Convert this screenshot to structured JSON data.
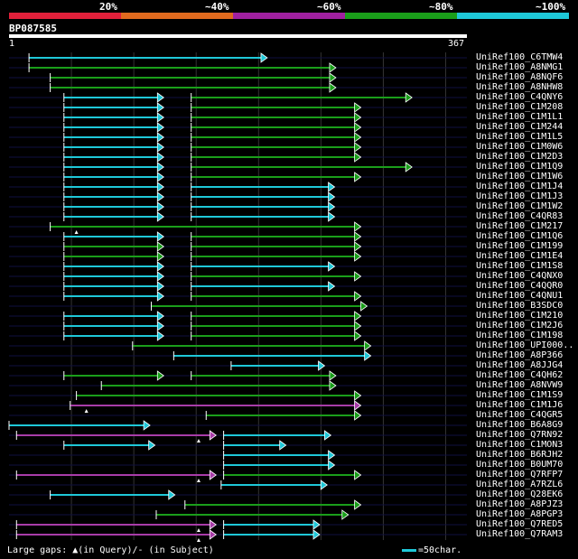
{
  "legend": {
    "segments": [
      {
        "color": "#e0203a",
        "fraction": 0.2
      },
      {
        "color": "#e06a1e",
        "fraction": 0.2
      },
      {
        "color": "#a020a0",
        "fraction": 0.2
      },
      {
        "color": "#1a9e1a",
        "fraction": 0.2
      },
      {
        "color": "#1ec8d8",
        "fraction": 0.2
      }
    ],
    "labels": [
      "20%",
      "~40%",
      "~60%",
      "~80%",
      "~100%"
    ]
  },
  "query": {
    "name": "BP087585",
    "start": "1",
    "end": "367",
    "length": 367
  },
  "footer": {
    "gaps_text": "Large gaps: ▲(in Query)/- (in Subject)",
    "scale_text": "=50char."
  },
  "colors": {
    "cyan": "#1ec8d8",
    "green": "#1a9e1a",
    "magenta": "#a83ca8"
  },
  "hits": [
    {
      "name": "UniRef100_C6TMW4",
      "segs": [
        [
          16,
          207,
          "cyan"
        ]
      ]
    },
    {
      "name": "UniRef100_A8NMG1",
      "segs": [
        [
          16,
          262,
          "green"
        ]
      ]
    },
    {
      "name": "UniRef100_A8NQF6",
      "segs": [
        [
          33,
          262,
          "green"
        ]
      ]
    },
    {
      "name": "UniRef100_A8NHW8",
      "segs": [
        [
          33,
          262,
          "green"
        ]
      ]
    },
    {
      "name": "UniRef100_C4QNY6",
      "segs": [
        [
          44,
          124,
          "cyan"
        ],
        [
          146,
          323,
          "green"
        ]
      ]
    },
    {
      "name": "UniRef100_C1M208",
      "segs": [
        [
          44,
          124,
          "cyan"
        ],
        [
          146,
          282,
          "green"
        ]
      ]
    },
    {
      "name": "UniRef100_C1M1L1",
      "segs": [
        [
          44,
          124,
          "cyan"
        ],
        [
          146,
          282,
          "green"
        ]
      ]
    },
    {
      "name": "UniRef100_C1M244",
      "segs": [
        [
          44,
          124,
          "cyan"
        ],
        [
          146,
          282,
          "green"
        ]
      ]
    },
    {
      "name": "UniRef100_C1M1L5",
      "segs": [
        [
          44,
          124,
          "cyan"
        ],
        [
          146,
          282,
          "green"
        ]
      ]
    },
    {
      "name": "UniRef100_C1M0W6",
      "segs": [
        [
          44,
          124,
          "cyan"
        ],
        [
          146,
          282,
          "green"
        ]
      ]
    },
    {
      "name": "UniRef100_C1M2D3",
      "segs": [
        [
          44,
          124,
          "cyan"
        ],
        [
          146,
          282,
          "green"
        ]
      ]
    },
    {
      "name": "UniRef100_C1M1Q9",
      "segs": [
        [
          44,
          124,
          "cyan"
        ],
        [
          146,
          323,
          "green"
        ]
      ]
    },
    {
      "name": "UniRef100_C1M1W6",
      "segs": [
        [
          44,
          124,
          "cyan"
        ],
        [
          146,
          282,
          "green"
        ]
      ]
    },
    {
      "name": "UniRef100_C1M1J4",
      "segs": [
        [
          44,
          124,
          "cyan"
        ],
        [
          146,
          261,
          "cyan"
        ]
      ]
    },
    {
      "name": "UniRef100_C1M1J3",
      "segs": [
        [
          44,
          124,
          "cyan"
        ],
        [
          146,
          261,
          "cyan"
        ]
      ]
    },
    {
      "name": "UniRef100_C1M1W2",
      "segs": [
        [
          44,
          124,
          "cyan"
        ],
        [
          146,
          261,
          "cyan"
        ]
      ]
    },
    {
      "name": "UniRef100_C4QR83",
      "segs": [
        [
          44,
          124,
          "cyan"
        ],
        [
          146,
          261,
          "cyan"
        ]
      ]
    },
    {
      "name": "UniRef100_C1M217",
      "segs": [
        [
          33,
          282,
          "green"
        ]
      ],
      "marks": [
        54
      ]
    },
    {
      "name": "UniRef100_C1M1Q6",
      "segs": [
        [
          44,
          124,
          "cyan"
        ],
        [
          146,
          282,
          "green"
        ]
      ]
    },
    {
      "name": "UniRef100_C1M199",
      "segs": [
        [
          44,
          124,
          "green"
        ],
        [
          146,
          282,
          "green"
        ]
      ]
    },
    {
      "name": "UniRef100_C1M1E4",
      "segs": [
        [
          44,
          124,
          "green"
        ],
        [
          146,
          282,
          "green"
        ]
      ]
    },
    {
      "name": "UniRef100_C1M1S8",
      "segs": [
        [
          44,
          124,
          "cyan"
        ],
        [
          146,
          261,
          "cyan"
        ]
      ]
    },
    {
      "name": "UniRef100_C4QNX0",
      "segs": [
        [
          44,
          124,
          "cyan"
        ],
        [
          146,
          282,
          "green"
        ]
      ]
    },
    {
      "name": "UniRef100_C4QQR0",
      "segs": [
        [
          44,
          124,
          "cyan"
        ],
        [
          146,
          261,
          "cyan"
        ]
      ]
    },
    {
      "name": "UniRef100_C4QNU1",
      "segs": [
        [
          44,
          124,
          "cyan"
        ],
        [
          146,
          282,
          "green"
        ]
      ]
    },
    {
      "name": "UniRef100_B3SDC0",
      "segs": [
        [
          114,
          287,
          "green"
        ]
      ]
    },
    {
      "name": "UniRef100_C1M210",
      "segs": [
        [
          44,
          124,
          "cyan"
        ],
        [
          146,
          282,
          "green"
        ]
      ]
    },
    {
      "name": "UniRef100_C1M2J6",
      "segs": [
        [
          44,
          124,
          "cyan"
        ],
        [
          146,
          282,
          "green"
        ]
      ]
    },
    {
      "name": "UniRef100_C1M198",
      "segs": [
        [
          44,
          124,
          "cyan"
        ],
        [
          146,
          282,
          "green"
        ]
      ]
    },
    {
      "name": "UniRef100_UPI000..",
      "segs": [
        [
          99,
          290,
          "green"
        ]
      ]
    },
    {
      "name": "UniRef100_A8P366",
      "segs": [
        [
          132,
          290,
          "cyan"
        ]
      ]
    },
    {
      "name": "UniRef100_A8JJG4",
      "segs": [
        [
          178,
          253,
          "cyan"
        ]
      ]
    },
    {
      "name": "UniRef100_C4QH62",
      "segs": [
        [
          44,
          124,
          "green"
        ],
        [
          146,
          262,
          "green"
        ]
      ]
    },
    {
      "name": "UniRef100_A8NVW9",
      "segs": [
        [
          74,
          262,
          "green"
        ]
      ]
    },
    {
      "name": "UniRef100_C1M1S9",
      "segs": [
        [
          54,
          282,
          "green"
        ]
      ]
    },
    {
      "name": "UniRef100_C1M1J6",
      "segs": [
        [
          49,
          282,
          "magenta"
        ]
      ],
      "marks": [
        62
      ]
    },
    {
      "name": "UniRef100_C4QGR5",
      "segs": [
        [
          158,
          282,
          "green"
        ]
      ]
    },
    {
      "name": "UniRef100_B6A8G9",
      "segs": [
        [
          0,
          113,
          "cyan"
        ]
      ]
    },
    {
      "name": "UniRef100_Q7RN92",
      "segs": [
        [
          6,
          166,
          "magenta"
        ],
        [
          172,
          258,
          "cyan"
        ]
      ],
      "marks": [
        152
      ]
    },
    {
      "name": "UniRef100_C1MON3",
      "segs": [
        [
          44,
          117,
          "cyan"
        ],
        [
          172,
          222,
          "cyan"
        ]
      ]
    },
    {
      "name": "UniRef100_B6RJH2",
      "segs": [
        [
          172,
          261,
          "cyan"
        ]
      ]
    },
    {
      "name": "UniRef100_B0UM70",
      "segs": [
        [
          172,
          261,
          "cyan"
        ]
      ]
    },
    {
      "name": "UniRef100_Q7RFP7",
      "segs": [
        [
          6,
          166,
          "magenta"
        ],
        [
          172,
          282,
          "green"
        ]
      ],
      "marks": [
        152
      ]
    },
    {
      "name": "UniRef100_A7RZL6",
      "segs": [
        [
          170,
          255,
          "cyan"
        ]
      ]
    },
    {
      "name": "UniRef100_Q28EK6",
      "segs": [
        [
          33,
          133,
          "cyan"
        ]
      ]
    },
    {
      "name": "UniRef100_A8PJZ3",
      "segs": [
        [
          141,
          282,
          "green"
        ]
      ]
    },
    {
      "name": "UniRef100_A8PGP3",
      "segs": [
        [
          118,
          272,
          "green"
        ]
      ]
    },
    {
      "name": "UniRef100_Q7RED5",
      "segs": [
        [
          6,
          166,
          "magenta"
        ],
        [
          172,
          249,
          "cyan"
        ]
      ],
      "marks": [
        152
      ]
    },
    {
      "name": "UniRef100_Q7RAM3",
      "segs": [
        [
          6,
          166,
          "magenta"
        ],
        [
          172,
          249,
          "cyan"
        ]
      ],
      "marks": [
        152
      ]
    }
  ]
}
